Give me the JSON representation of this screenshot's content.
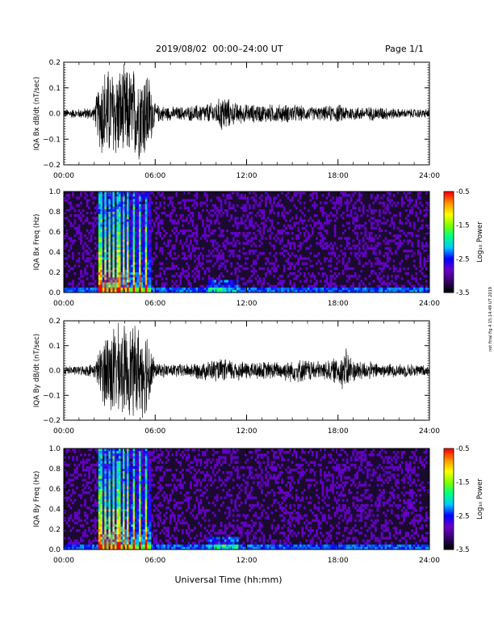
{
  "header": {
    "title": "2019/08/02  00:00–24:00 UT",
    "page": "Page 1/1"
  },
  "side_note": "not final fig 4 15:14:49 UT 2019",
  "x_axis": {
    "label": "Universal Time (hh:mm)",
    "ticks": [
      "00:00",
      "06:00",
      "12:00",
      "18:00",
      "24:00"
    ],
    "range_hours": [
      0,
      24
    ]
  },
  "colors": {
    "trace": "#000000",
    "spectrogram_background": "#1a0a2e",
    "colorbar": [
      "#000000",
      "#3a0070",
      "#6a00c8",
      "#0000ff",
      "#00c8ff",
      "#00ff80",
      "#80ff00",
      "#ffff00",
      "#ff9600",
      "#ff0000"
    ]
  },
  "chart_data": [
    {
      "type": "line",
      "ylabel": "IQA Bx dB/dt (nT/sec)",
      "ylim": [
        -0.2,
        0.2
      ],
      "yticks": [
        "0.2",
        "0.1",
        "0.0",
        "−0.1",
        "−0.2"
      ],
      "series": [
        {
          "x_hours": [
            0,
            1,
            2,
            2.5,
            2.8,
            3,
            3.5,
            4,
            4.5,
            5,
            5.5,
            6,
            7,
            8,
            9,
            10,
            10.5,
            11,
            12,
            13,
            14,
            15,
            16,
            17,
            18,
            19,
            20,
            21,
            22,
            23,
            24
          ],
          "amplitude": [
            0.02,
            0.02,
            0.03,
            0.2,
            0.2,
            0.2,
            0.2,
            0.2,
            0.2,
            0.2,
            0.2,
            0.04,
            0.03,
            0.03,
            0.04,
            0.05,
            0.09,
            0.05,
            0.04,
            0.04,
            0.04,
            0.04,
            0.03,
            0.03,
            0.04,
            0.03,
            0.03,
            0.03,
            0.02,
            0.02,
            0.02
          ]
        }
      ]
    },
    {
      "type": "heatmap",
      "ylabel": "IQA Bx Freq (Hz)",
      "ylim": [
        0,
        1
      ],
      "yticks": [
        "1.0",
        "0.8",
        "0.6",
        "0.4",
        "0.2",
        "0.0"
      ],
      "colorbar": {
        "label": "Log₁₀ Power",
        "range": [
          -3.5,
          -0.5
        ],
        "ticks": [
          "-0.5",
          "-1.5",
          "-2.5",
          "-3.5"
        ]
      },
      "bursts_hours": [
        2.4,
        2.7,
        3.0,
        3.3,
        3.6,
        3.9,
        4.2,
        4.6,
        5.0,
        5.4
      ],
      "enhanced_band_hours": [
        9.5,
        11.5
      ]
    },
    {
      "type": "line",
      "ylabel": "IQA By dB/dt (nT/sec)",
      "ylim": [
        -0.2,
        0.2
      ],
      "yticks": [
        "0.2",
        "0.1",
        "0.0",
        "−0.1",
        "−0.2"
      ],
      "series": [
        {
          "x_hours": [
            0,
            1,
            2,
            2.5,
            2.8,
            3,
            3.5,
            4,
            4.5,
            5,
            5.5,
            6,
            7,
            8,
            9,
            10,
            11,
            12,
            13,
            14,
            15,
            16,
            17,
            18,
            18.5,
            19,
            20,
            21,
            22,
            23,
            24
          ],
          "amplitude": [
            0.02,
            0.02,
            0.03,
            0.12,
            0.2,
            0.2,
            0.2,
            0.2,
            0.2,
            0.2,
            0.2,
            0.03,
            0.03,
            0.03,
            0.04,
            0.05,
            0.05,
            0.04,
            0.04,
            0.04,
            0.05,
            0.05,
            0.04,
            0.06,
            0.1,
            0.05,
            0.04,
            0.03,
            0.03,
            0.03,
            0.02
          ]
        }
      ]
    },
    {
      "type": "heatmap",
      "ylabel": "IQA By Freq (Hz)",
      "ylim": [
        0,
        1
      ],
      "yticks": [
        "1.0",
        "0.8",
        "0.6",
        "0.4",
        "0.2",
        "0.0"
      ],
      "colorbar": {
        "label": "Log₁₀ Power",
        "range": [
          -3.5,
          -0.5
        ],
        "ticks": [
          "-0.5",
          "-1.5",
          "-2.5",
          "-3.5"
        ]
      },
      "bursts_hours": [
        2.4,
        2.7,
        3.0,
        3.3,
        3.6,
        3.9,
        4.2,
        4.6,
        5.0,
        5.4
      ],
      "enhanced_band_hours": [
        9.5,
        11.5
      ]
    }
  ]
}
